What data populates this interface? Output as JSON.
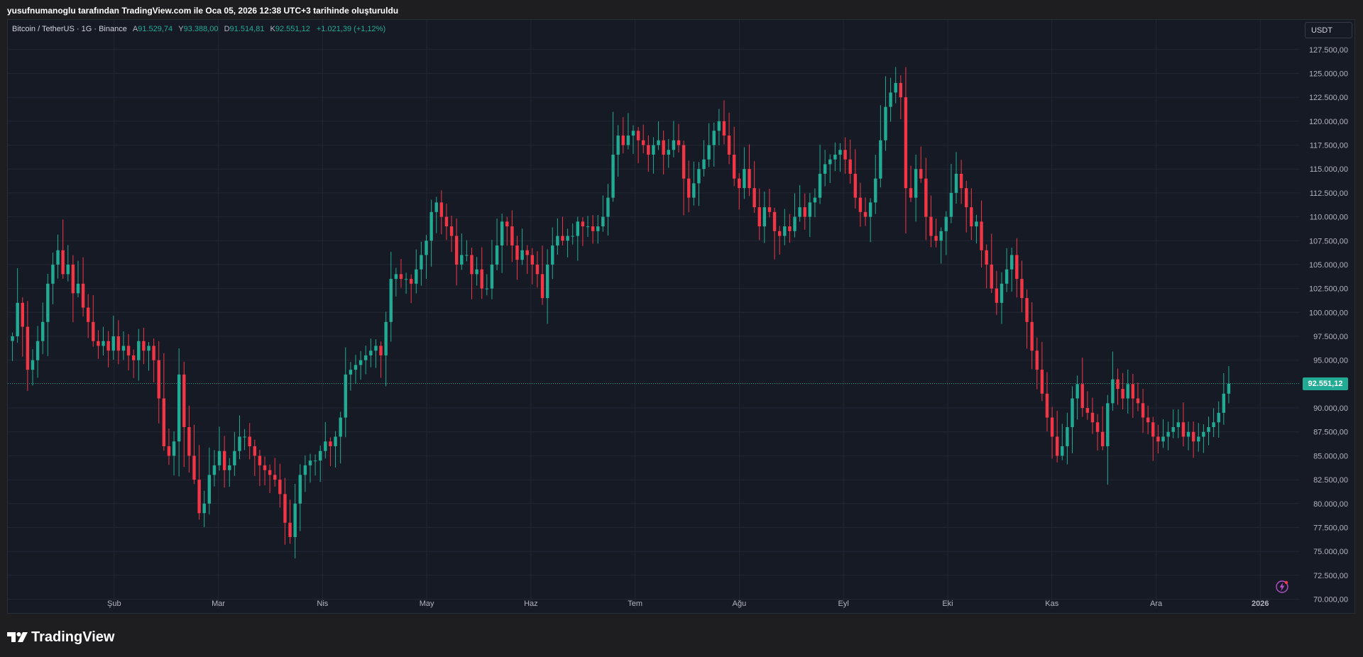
{
  "caption": "yusufnumanoglu tarafından TradingView.com ile Oca 05, 2026 12:38 UTC+3 tarihinde oluşturuldu",
  "legend": {
    "symbol": "Bitcoin / TetherUS · 1G · Binance",
    "open_label": "A",
    "open": "91.529,74",
    "high_label": "Y",
    "high": "93.388,00",
    "low_label": "D",
    "low": "91.514,81",
    "close_label": "K",
    "close": "92.551,12",
    "change": "+1.021,39 (+1,12%)"
  },
  "currency": "USDT",
  "last_price_label": "92.551,12",
  "brand": "TradingView",
  "colors": {
    "up": "#22ab94",
    "down": "#f23645",
    "background": "#161a25",
    "grid": "#232734"
  },
  "chart_data": {
    "type": "candlestick",
    "title": "Bitcoin / TetherUS · 1G · Binance",
    "timeframe": "1G",
    "ylim": [
      70000,
      130000
    ],
    "y_ticks": [
      {
        "value": 127500,
        "label": "127.500,00"
      },
      {
        "value": 125000,
        "label": "125.000,00"
      },
      {
        "value": 122500,
        "label": "122.500,00"
      },
      {
        "value": 120000,
        "label": "120.000,00"
      },
      {
        "value": 117500,
        "label": "117.500,00"
      },
      {
        "value": 115000,
        "label": "115.000,00"
      },
      {
        "value": 112500,
        "label": "112.500,00"
      },
      {
        "value": 110000,
        "label": "110.000,00"
      },
      {
        "value": 107500,
        "label": "107.500,00"
      },
      {
        "value": 105000,
        "label": "105.000,00"
      },
      {
        "value": 102500,
        "label": "102.500,00"
      },
      {
        "value": 100000,
        "label": "100.000,00"
      },
      {
        "value": 97500,
        "label": "97.500,00"
      },
      {
        "value": 95000,
        "label": "95.000,00"
      },
      {
        "value": 90000,
        "label": "90.000,00"
      },
      {
        "value": 87500,
        "label": "87.500,00"
      },
      {
        "value": 85000,
        "label": "85.000,00"
      },
      {
        "value": 82500,
        "label": "82.500,00"
      },
      {
        "value": 80000,
        "label": "80.000,00"
      },
      {
        "value": 77500,
        "label": "77.500,00"
      },
      {
        "value": 75000,
        "label": "75.000,00"
      },
      {
        "value": 72500,
        "label": "72.500,00"
      },
      {
        "value": 70000,
        "label": "70.000,00"
      }
    ],
    "x_labels": [
      {
        "label": "Şub",
        "month": 1
      },
      {
        "label": "Mar",
        "month": 2
      },
      {
        "label": "Nis",
        "month": 3
      },
      {
        "label": "May",
        "month": 4
      },
      {
        "label": "Haz",
        "month": 5
      },
      {
        "label": "Tem",
        "month": 6
      },
      {
        "label": "Ağu",
        "month": 7
      },
      {
        "label": "Eyl",
        "month": 8
      },
      {
        "label": "Eki",
        "month": 9
      },
      {
        "label": "Kas",
        "month": 10
      },
      {
        "label": "Ara",
        "month": 11
      },
      {
        "label": "2026",
        "month": 12,
        "bold": true
      }
    ],
    "last_price": 92551.12,
    "series_close_approx": [
      97500,
      101000,
      98500,
      94000,
      95000,
      97000,
      99000,
      103000,
      105000,
      106500,
      104000,
      105000,
      102000,
      103000,
      100500,
      99000,
      97000,
      96500,
      97000,
      96000,
      97500,
      96000,
      96500,
      95500,
      95000,
      97000,
      96000,
      96500,
      95000,
      91000,
      86000,
      85000,
      86500,
      93500,
      88000,
      85000,
      82500,
      79000,
      80000,
      83000,
      84000,
      85500,
      83500,
      84000,
      85500,
      87000,
      87000,
      86000,
      85000,
      84000,
      83500,
      83000,
      82500,
      81000,
      78000,
      76500,
      80000,
      83000,
      84000,
      84500,
      84500,
      85500,
      86500,
      86000,
      87000,
      89000,
      93500,
      94000,
      94500,
      95000,
      95500,
      96000,
      96500,
      95500,
      99000,
      103500,
      104000,
      103500,
      103500,
      103000,
      104500,
      106000,
      107500,
      110500,
      111500,
      110000,
      109000,
      108000,
      105000,
      106000,
      106000,
      104000,
      104500,
      102500,
      102500,
      105000,
      107000,
      109500,
      109000,
      107000,
      105500,
      106500,
      106000,
      105000,
      104000,
      101500,
      105000,
      107000,
      108000,
      107500,
      108000,
      108000,
      109500,
      109000,
      109000,
      108500,
      109000,
      110000,
      112000,
      116500,
      118500,
      117500,
      118500,
      119000,
      118000,
      117500,
      116500,
      117500,
      118000,
      116500,
      117000,
      118000,
      117500,
      114000,
      112000,
      113500,
      115000,
      116000,
      117500,
      119000,
      120000,
      118500,
      116500,
      114000,
      113000,
      115000,
      113000,
      111000,
      109000,
      111000,
      110500,
      108500,
      108000,
      109000,
      108500,
      110000,
      111000,
      110000,
      111500,
      112000,
      114500,
      115500,
      116000,
      116500,
      117000,
      116000,
      114500,
      112000,
      110500,
      110000,
      111500,
      114000,
      118000,
      121500,
      123000,
      124000,
      122500,
      113000,
      112000,
      115000,
      114000,
      110000,
      108000,
      107500,
      108500,
      110000,
      112500,
      114500,
      113000,
      111000,
      109000,
      109500,
      106500,
      105000,
      102500,
      101000,
      103000,
      104500,
      106000,
      103500,
      101500,
      99000,
      96000,
      94000,
      91500,
      89000,
      87000,
      85000,
      86000,
      88000,
      91000,
      92500,
      90000,
      89500,
      88500,
      87500,
      86000,
      90500,
      93000,
      92000,
      91000,
      92500,
      91000,
      90500,
      89000,
      88500,
      87000,
      86500,
      87000,
      87500,
      88000,
      88500,
      87000,
      87500,
      86500,
      87000,
      87500,
      88000,
      88500,
      89500,
      91500,
      92551
    ]
  }
}
